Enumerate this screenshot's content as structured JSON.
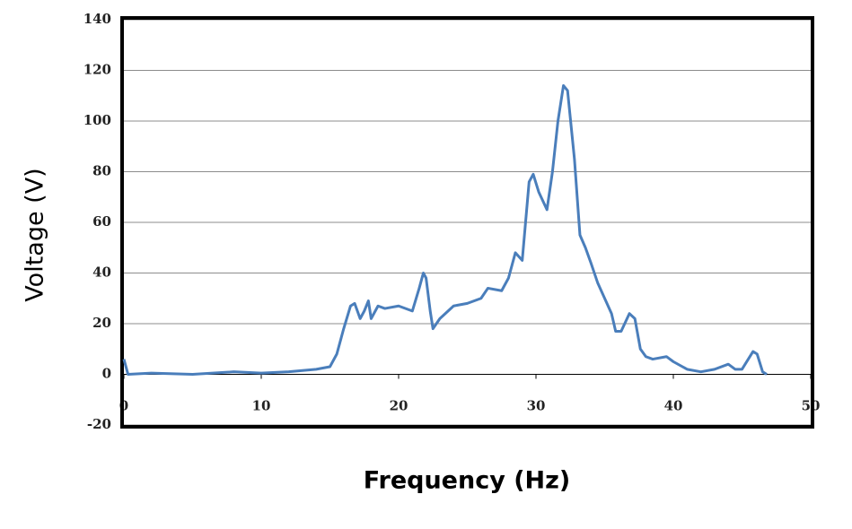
{
  "chart_data": {
    "type": "line",
    "xlabel": "Frequency (Hz)",
    "ylabel": "Voltage (V)",
    "xlim": [
      0,
      50
    ],
    "xticks": [
      0,
      10,
      20,
      30,
      40,
      50
    ],
    "ylim": [
      -20,
      140
    ],
    "yticks": [
      -20,
      0,
      20,
      40,
      60,
      80,
      100,
      120,
      140
    ],
    "grid": true,
    "series": [
      {
        "color": "#4a7ebb",
        "x": [
          0,
          0.3,
          2,
          5,
          8,
          10,
          12,
          14,
          15,
          15.5,
          16,
          16.5,
          16.8,
          17.2,
          17.5,
          17.8,
          18,
          18.5,
          19,
          20,
          21,
          21.5,
          21.8,
          22,
          22.3,
          22.5,
          23,
          24,
          25,
          26,
          26.5,
          27.5,
          28,
          28.5,
          29,
          29.5,
          29.8,
          30.2,
          30.8,
          31.2,
          31.6,
          32,
          32.3,
          32.8,
          33.2,
          33.6,
          34,
          34.5,
          35,
          35.5,
          35.8,
          36.2,
          36.8,
          37.2,
          37.6,
          38,
          38.5,
          39.5,
          40,
          41,
          42,
          43,
          44,
          44.5,
          45,
          45.8,
          46.1,
          46.5,
          46.8
        ],
        "values": [
          6,
          0,
          0.5,
          0,
          1,
          0.5,
          1,
          2,
          3,
          8,
          18,
          27,
          28,
          22,
          25,
          29,
          22,
          27,
          26,
          27,
          25,
          34,
          40,
          38,
          25,
          18,
          22,
          27,
          28,
          30,
          34,
          33,
          38,
          48,
          45,
          76,
          79,
          72,
          65,
          80,
          100,
          114,
          112,
          85,
          55,
          50,
          44,
          36,
          30,
          24,
          17,
          17,
          24,
          22,
          10,
          7,
          6,
          7,
          5,
          2,
          1,
          2,
          4,
          2,
          2,
          9,
          8,
          1,
          0
        ]
      }
    ]
  }
}
